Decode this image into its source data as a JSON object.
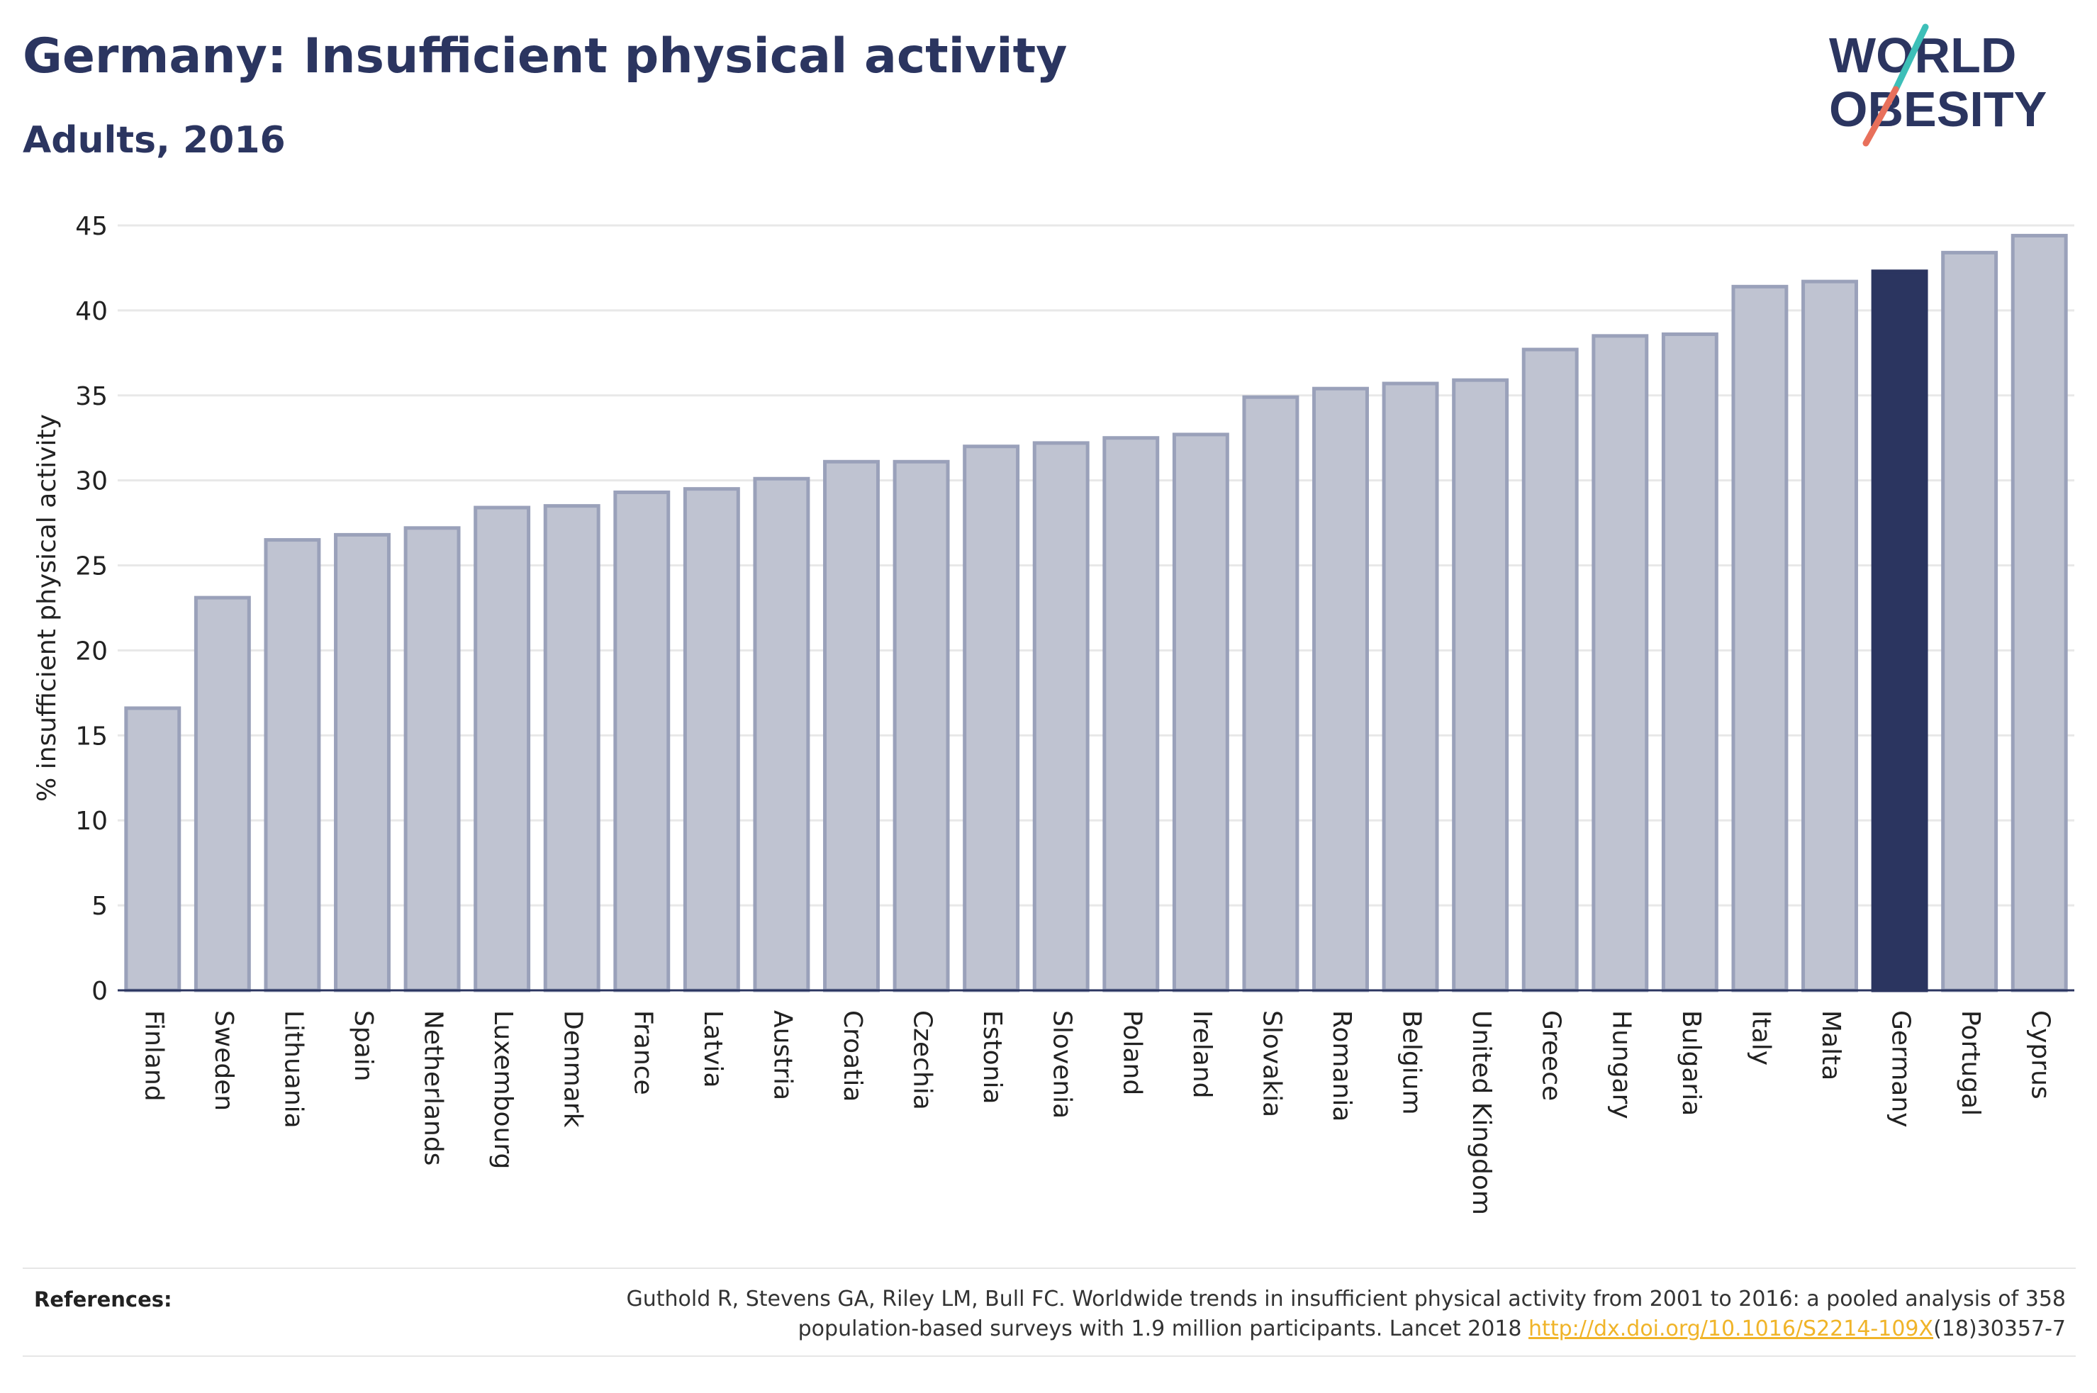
{
  "header": {
    "title": "Germany: Insufficient physical activity",
    "subtitle": "Adults, 2016"
  },
  "logo": {
    "line1": "WORLD",
    "line2": "OBESITY",
    "slash_colors": [
      "#3dbfb8",
      "#e8705b"
    ]
  },
  "colors": {
    "bar_fill": "#bfc3d1",
    "bar_stroke": "#9aa1ba",
    "highlight": "#2b3560",
    "grid": "#e8e8e8",
    "axis": "#2b3560",
    "link": "#f0b429"
  },
  "chart_data": {
    "type": "bar",
    "title": "Germany: Insufficient physical activity",
    "subtitle": "Adults, 2016",
    "ylabel": "% insufficient physical activity",
    "xlabel": "",
    "ylim": [
      0,
      45
    ],
    "yticks": [
      0,
      5,
      10,
      15,
      20,
      25,
      30,
      35,
      40,
      45
    ],
    "grid": true,
    "highlight": "Germany",
    "categories": [
      "Finland",
      "Sweden",
      "Lithuania",
      "Spain",
      "Netherlands",
      "Luxembourg",
      "Denmark",
      "France",
      "Latvia",
      "Austria",
      "Croatia",
      "Czechia",
      "Estonia",
      "Slovenia",
      "Poland",
      "Ireland",
      "Slovakia",
      "Romania",
      "Belgium",
      "United Kingdom",
      "Greece",
      "Hungary",
      "Bulgaria",
      "Italy",
      "Malta",
      "Germany",
      "Portugal",
      "Cyprus"
    ],
    "values": [
      16.6,
      23.1,
      26.5,
      26.8,
      27.2,
      28.4,
      28.5,
      29.3,
      29.5,
      30.1,
      31.1,
      31.1,
      32.0,
      32.2,
      32.5,
      32.7,
      34.9,
      35.4,
      35.7,
      35.9,
      37.7,
      38.5,
      38.6,
      41.4,
      41.7,
      42.3,
      43.4,
      44.4
    ]
  },
  "references": {
    "label": "References:",
    "line1": "Guthold R, Stevens GA, Riley LM, Bull FC. Worldwide trends in insufficient physical activity from 2001 to 2016: a pooled analysis of 358",
    "line2_prefix": "population-based surveys with 1.9 million participants. Lancet 2018 ",
    "link": "http://dx.doi.org/10.1016/S2214-109X",
    "line2_suffix": "(18)30357-7"
  }
}
